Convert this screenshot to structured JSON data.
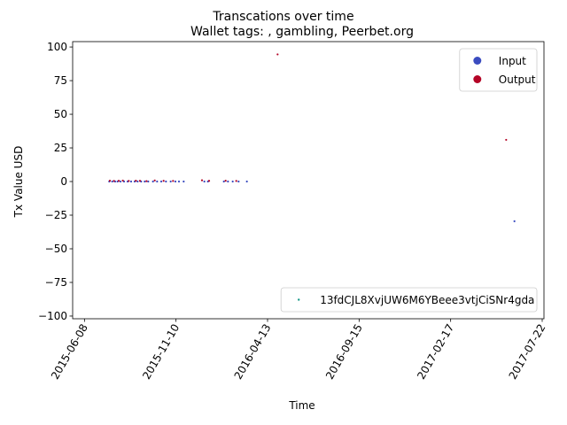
{
  "chart_data": {
    "type": "scatter",
    "suptitle": "Transcations over time",
    "title": "Wallet tags: , gambling, Peerbet.org",
    "xlabel": "Time",
    "ylabel": "Tx Value USD",
    "x_type": "date",
    "xlim": [
      "2015-05-19",
      "2017-07-25"
    ],
    "ylim": [
      -102,
      104
    ],
    "x_ticks": [
      "2015-06-08",
      "2015-11-10",
      "2016-04-13",
      "2016-09-15",
      "2017-02-17",
      "2017-07-22"
    ],
    "y_ticks": [
      -100,
      -75,
      -50,
      -25,
      0,
      25,
      50,
      75,
      100
    ],
    "grid": false,
    "colors": {
      "input": "#3b4cc0",
      "output": "#b40426",
      "wallet": "#1a9a8a"
    },
    "legends": [
      {
        "placement": "upper-right",
        "entries": [
          {
            "label": "Input",
            "color": "#3b4cc0"
          },
          {
            "label": "Output",
            "color": "#b40426"
          }
        ]
      },
      {
        "placement": "lower-right",
        "entries": [
          {
            "label": "13fdCJL8XvjUW6M6YBeee3vtjCiSNr4gda",
            "color": "#1a9a8a"
          }
        ]
      }
    ],
    "series": [
      {
        "name": "Input",
        "color": "#3b4cc0",
        "points": [
          [
            "2015-07-20",
            0
          ],
          [
            "2015-07-25",
            0
          ],
          [
            "2015-07-30",
            0
          ],
          [
            "2015-08-03",
            0
          ],
          [
            "2015-08-08",
            0
          ],
          [
            "2015-08-14",
            0
          ],
          [
            "2015-08-20",
            0
          ],
          [
            "2015-08-26",
            0
          ],
          [
            "2015-09-01",
            0
          ],
          [
            "2015-09-06",
            0
          ],
          [
            "2015-09-12",
            0
          ],
          [
            "2015-09-18",
            0
          ],
          [
            "2015-09-24",
            0
          ],
          [
            "2015-10-02",
            0
          ],
          [
            "2015-10-09",
            0
          ],
          [
            "2015-10-16",
            0
          ],
          [
            "2015-10-24",
            0
          ],
          [
            "2015-11-01",
            0
          ],
          [
            "2015-11-09",
            0
          ],
          [
            "2015-11-15",
            0
          ],
          [
            "2015-11-23",
            0
          ],
          [
            "2015-12-28",
            0
          ],
          [
            "2016-01-03",
            0
          ],
          [
            "2016-01-30",
            0
          ],
          [
            "2016-02-06",
            0
          ],
          [
            "2016-02-14",
            0
          ],
          [
            "2016-02-24",
            0
          ],
          [
            "2016-03-09",
            0
          ],
          [
            "2017-06-05",
            -29.5
          ]
        ]
      },
      {
        "name": "Output",
        "color": "#b40426",
        "points": [
          [
            "2015-07-21",
            0.6
          ],
          [
            "2015-07-28",
            0.4
          ],
          [
            "2015-08-05",
            0.5
          ],
          [
            "2015-08-12",
            0.7
          ],
          [
            "2015-08-22",
            0.4
          ],
          [
            "2015-09-03",
            0.6
          ],
          [
            "2015-09-10",
            0.5
          ],
          [
            "2015-09-21",
            0.3
          ],
          [
            "2015-10-05",
            0.8
          ],
          [
            "2015-10-20",
            0.5
          ],
          [
            "2015-11-05",
            0.4
          ],
          [
            "2015-12-24",
            0.9
          ],
          [
            "2016-01-05",
            0.5
          ],
          [
            "2016-02-02",
            0.6
          ],
          [
            "2016-02-20",
            0.4
          ],
          [
            "2016-04-30",
            94.5
          ],
          [
            "2017-05-22",
            31
          ]
        ]
      }
    ]
  }
}
